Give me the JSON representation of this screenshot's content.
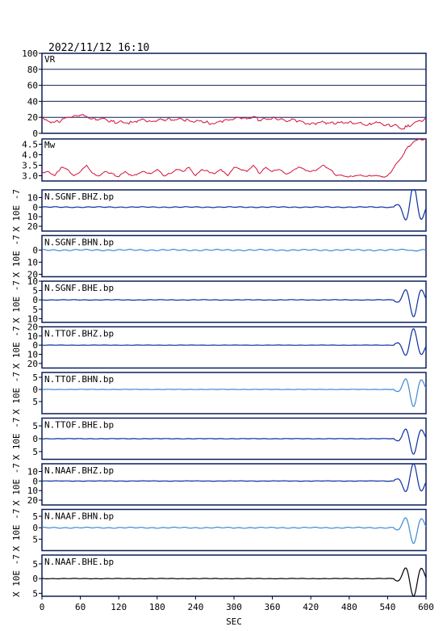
{
  "header": {
    "timestamp": "2022/11/12 16:10"
  },
  "chart_data": [
    {
      "type": "line",
      "label": "VR",
      "ylim": [
        0,
        100
      ],
      "yticks": [
        "100",
        "80",
        "60",
        "40",
        "20",
        "0"
      ],
      "grid": true,
      "color": "#d4103c",
      "x": [
        0,
        10,
        20,
        30,
        40,
        50,
        60,
        70,
        80,
        90,
        100,
        110,
        120,
        130,
        140,
        150,
        160,
        170,
        180,
        190,
        200,
        210,
        220,
        230,
        240,
        250,
        260,
        270,
        280,
        290,
        300,
        310,
        320,
        330,
        340,
        350,
        360,
        370,
        380,
        390,
        400,
        410,
        420,
        430,
        440,
        450,
        460,
        470,
        480,
        490,
        500,
        510,
        520,
        530,
        540,
        550,
        560,
        570,
        580,
        590,
        600
      ],
      "y": [
        18,
        15,
        14,
        16,
        20,
        22,
        23,
        21,
        19,
        18,
        17,
        15,
        14,
        13,
        14,
        16,
        17,
        15,
        16,
        17,
        18,
        17,
        17,
        16,
        15,
        15,
        13,
        12,
        15,
        17,
        18,
        19,
        18,
        21,
        16,
        18,
        19,
        17,
        16,
        18,
        15,
        13,
        12,
        13,
        14,
        13,
        12,
        13,
        14,
        12,
        12,
        11,
        13,
        12,
        11,
        10,
        6,
        8,
        12,
        16,
        17
      ]
    },
    {
      "type": "line",
      "label": "Mw",
      "ylim": [
        2.75,
        4.75
      ],
      "yticks": [
        "4.5",
        "4.0",
        "3.5",
        "3.0"
      ],
      "grid": false,
      "color": "#d4103c",
      "x": [
        0,
        10,
        20,
        30,
        40,
        50,
        60,
        70,
        80,
        90,
        100,
        110,
        120,
        130,
        140,
        150,
        160,
        170,
        180,
        190,
        200,
        210,
        220,
        230,
        240,
        250,
        260,
        270,
        280,
        290,
        300,
        310,
        320,
        330,
        340,
        350,
        360,
        370,
        380,
        390,
        400,
        410,
        420,
        430,
        440,
        450,
        460,
        470,
        480,
        490,
        500,
        510,
        520,
        530,
        540,
        550,
        560,
        570,
        580,
        590,
        600
      ],
      "y": [
        3.1,
        3.2,
        3.0,
        3.4,
        3.3,
        3.0,
        3.2,
        3.5,
        3.1,
        3.0,
        3.2,
        3.1,
        2.95,
        3.2,
        3.0,
        3.1,
        3.2,
        3.1,
        3.3,
        3.0,
        3.1,
        3.3,
        3.2,
        3.4,
        3.0,
        3.3,
        3.2,
        3.1,
        3.3,
        3.0,
        3.4,
        3.3,
        3.2,
        3.5,
        3.1,
        3.4,
        3.2,
        3.3,
        3.1,
        3.2,
        3.4,
        3.3,
        3.2,
        3.3,
        3.5,
        3.3,
        3.0,
        3.0,
        2.95,
        3.0,
        3.0,
        3.0,
        3.0,
        2.95,
        3.0,
        3.4,
        3.8,
        4.3,
        4.6,
        4.75,
        4.7
      ]
    }
  ],
  "waveforms": [
    {
      "name": "N.SGNF.BHZ.bp",
      "ylim": [
        -25,
        18
      ],
      "yticks": [
        {
          "v": 10,
          "t": "10"
        },
        {
          "v": 0,
          "t": "0"
        },
        {
          "v": -10,
          "t": "10"
        },
        {
          "v": -20,
          "t": "20"
        }
      ],
      "color": "#0a2fa0",
      "amp": 22,
      "noise": 0.3,
      "flip": -1
    },
    {
      "name": "N.SGNF.BHN.bp",
      "ylim": [
        -22,
        12
      ],
      "yticks": [
        {
          "v": 0,
          "t": "0"
        },
        {
          "v": -10,
          "t": "10"
        },
        {
          "v": -20,
          "t": "20"
        }
      ],
      "color": "#3d8ad6",
      "amp": 0.6,
      "noise": 0.4,
      "flip": 1
    },
    {
      "name": "N.SGNF.BHE.bp",
      "ylim": [
        -12,
        10
      ],
      "yticks": [
        {
          "v": 10,
          "t": "10"
        },
        {
          "v": 5,
          "t": "5"
        },
        {
          "v": 0,
          "t": "0"
        },
        {
          "v": -5,
          "t": "5"
        },
        {
          "v": -10,
          "t": "10"
        }
      ],
      "color": "#0a2fa0",
      "amp": 9,
      "noise": 0.1,
      "flip": 1
    },
    {
      "name": "N.TTOF.BHZ.bp",
      "ylim": [
        -25,
        20
      ],
      "yticks": [
        {
          "v": 20,
          "t": "20"
        },
        {
          "v": 10,
          "t": "10"
        },
        {
          "v": 0,
          "t": "0"
        },
        {
          "v": -10,
          "t": "10"
        },
        {
          "v": -20,
          "t": "20"
        }
      ],
      "color": "#0a2fa0",
      "amp": 18,
      "noise": 0.1,
      "flip": -1
    },
    {
      "name": "N.TTOF.BHN.bp",
      "ylim": [
        -10,
        7
      ],
      "yticks": [
        {
          "v": 5,
          "t": "5"
        },
        {
          "v": 0,
          "t": "0"
        },
        {
          "v": -5,
          "t": "5"
        }
      ],
      "color": "#3d8ad6",
      "amp": 7,
      "noise": 0.05,
      "flip": 1
    },
    {
      "name": "N.TTOF.BHE.bp",
      "ylim": [
        -8,
        8
      ],
      "yticks": [
        {
          "v": 5,
          "t": "5"
        },
        {
          "v": 0,
          "t": "0"
        },
        {
          "v": -5,
          "t": "5"
        }
      ],
      "color": "#0a2fa0",
      "amp": 6,
      "noise": 0.05,
      "flip": 1
    },
    {
      "name": "N.NAAF.BHZ.bp",
      "ylim": [
        -25,
        18
      ],
      "yticks": [
        {
          "v": 10,
          "t": "10"
        },
        {
          "v": 0,
          "t": "0"
        },
        {
          "v": -10,
          "t": "10"
        },
        {
          "v": -20,
          "t": "20"
        }
      ],
      "color": "#0a2fa0",
      "amp": 18,
      "noise": 0.15,
      "flip": -1
    },
    {
      "name": "N.NAAF.BHN.bp",
      "ylim": [
        -10,
        8
      ],
      "yticks": [
        {
          "v": 5,
          "t": "5"
        },
        {
          "v": 0,
          "t": "0"
        },
        {
          "v": -5,
          "t": "5"
        }
      ],
      "color": "#3d8ad6",
      "amp": 7,
      "noise": 0.15,
      "flip": 1
    },
    {
      "name": "N.NAAF.BHE.bp",
      "ylim": [
        -6,
        8
      ],
      "yticks": [
        {
          "v": 5,
          "t": "5"
        },
        {
          "v": 0,
          "t": "0"
        },
        {
          "v": -5,
          "t": "5"
        }
      ],
      "color": "#000000",
      "amp": 6,
      "noise": 0.05,
      "flip": 1
    }
  ],
  "y_unit_label": "X 10E -7",
  "x_axis": {
    "label": "SEC",
    "ticks": [
      0,
      60,
      120,
      180,
      240,
      300,
      360,
      420,
      480,
      540,
      600
    ],
    "range": [
      0,
      600
    ]
  }
}
